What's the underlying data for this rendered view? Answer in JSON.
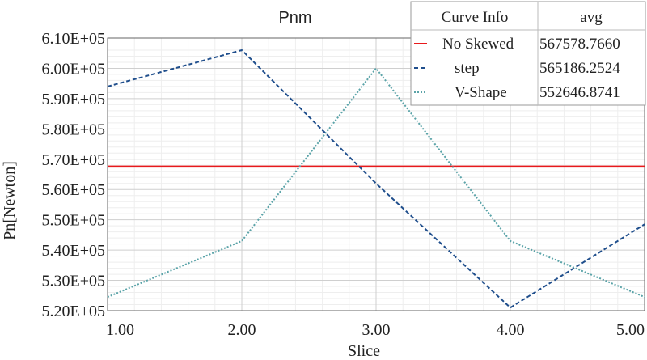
{
  "chart_data": {
    "type": "line",
    "title": "Pnm",
    "xlabel": "Slice",
    "ylabel": "Pn[Newton]",
    "x": [
      1,
      2,
      3,
      4,
      5
    ],
    "xlim": [
      1,
      5
    ],
    "ylim": [
      520000,
      610000
    ],
    "x_ticks": [
      "1.00",
      "2.00",
      "3.00",
      "4.00",
      "5.00"
    ],
    "y_ticks": [
      "5.20E+05",
      "5.30E+05",
      "5.40E+05",
      "5.50E+05",
      "5.60E+05",
      "5.70E+05",
      "5.80E+05",
      "5.90E+05",
      "6.00E+05",
      "6.10E+05"
    ],
    "grid": true,
    "legend": {
      "position": "top-right",
      "header_name": "Curve Info",
      "header_stat": "avg"
    },
    "series": [
      {
        "name": "No Skewed",
        "avg": "567578.7660",
        "color": "#e8191c",
        "dash": "solid",
        "values": [
          567579,
          567579,
          567579,
          567579,
          567579
        ]
      },
      {
        "name": "step",
        "avg": "565186.2524",
        "color": "#1f4e8c",
        "dash": "dashed",
        "values": [
          594000,
          606000,
          562000,
          521000,
          548500
        ]
      },
      {
        "name": "V-Shape",
        "avg": "552646.8741",
        "color": "#5aa3a8",
        "dash": "dotted",
        "values": [
          524500,
          543000,
          600000,
          543000,
          524500
        ]
      }
    ]
  }
}
